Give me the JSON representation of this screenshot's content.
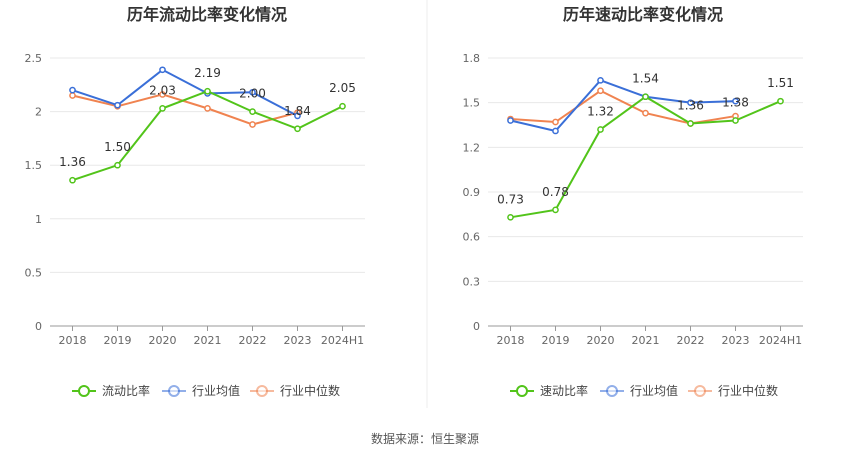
{
  "source_text": "数据来源：恒生聚源",
  "colors": {
    "main": "#52c41a",
    "avg": "#3a6fd8",
    "median": "#f08350",
    "grid": "#e8e8e8",
    "axis": "#999999"
  },
  "chart_data": [
    {
      "type": "line",
      "title": "历年流动比率变化情况",
      "categories": [
        "2018",
        "2019",
        "2020",
        "2021",
        "2022",
        "2023",
        "2024H1"
      ],
      "ylim": [
        0,
        2.5
      ],
      "yticks": [
        "0",
        "0.5",
        "1",
        "1.5",
        "2",
        "2.5"
      ],
      "ytick_values": [
        0,
        0.5,
        1,
        1.5,
        2,
        2.5
      ],
      "grid": true,
      "legend_position": "bottom",
      "series": [
        {
          "name": "流动比率",
          "color": "#52c41a",
          "values": [
            1.36,
            1.5,
            2.03,
            2.19,
            2.0,
            1.84,
            2.05
          ],
          "labels": [
            "1.36",
            "1.50",
            "2.03",
            "2.19",
            "2.00",
            "1.84",
            "2.05"
          ]
        },
        {
          "name": "行业均值",
          "color": "#3a6fd8",
          "values": [
            2.2,
            2.06,
            2.39,
            2.17,
            2.18,
            1.96,
            null
          ]
        },
        {
          "name": "行业中位数",
          "color": "#f08350",
          "values": [
            2.15,
            2.05,
            2.16,
            2.03,
            1.88,
            1.99,
            null
          ]
        }
      ]
    },
    {
      "type": "line",
      "title": "历年速动比率变化情况",
      "categories": [
        "2018",
        "2019",
        "2020",
        "2021",
        "2022",
        "2023",
        "2024H1"
      ],
      "ylim": [
        0,
        1.8
      ],
      "yticks": [
        "0",
        "0.3",
        "0.6",
        "0.9",
        "1.2",
        "1.5",
        "1.8"
      ],
      "ytick_values": [
        0,
        0.3,
        0.6,
        0.9,
        1.2,
        1.5,
        1.8
      ],
      "grid": true,
      "legend_position": "bottom",
      "series": [
        {
          "name": "速动比率",
          "color": "#52c41a",
          "values": [
            0.73,
            0.78,
            1.32,
            1.54,
            1.36,
            1.38,
            1.51
          ],
          "labels": [
            "0.73",
            "0.78",
            "1.32",
            "1.54",
            "1.36",
            "1.38",
            "1.51"
          ]
        },
        {
          "name": "行业均值",
          "color": "#3a6fd8",
          "values": [
            1.38,
            1.31,
            1.65,
            1.54,
            1.5,
            1.51,
            null
          ]
        },
        {
          "name": "行业中位数",
          "color": "#f08350",
          "values": [
            1.39,
            1.37,
            1.58,
            1.43,
            1.36,
            1.41,
            null
          ]
        }
      ]
    }
  ]
}
